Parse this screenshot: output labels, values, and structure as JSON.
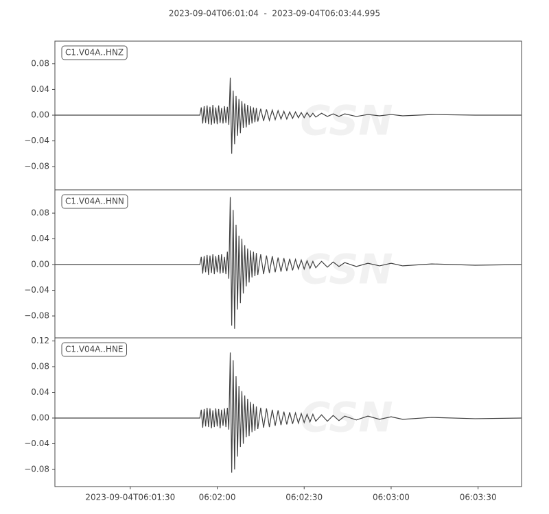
{
  "title": "2023-09-04T06:01:04  -  2023-09-04T06:03:44.995",
  "watermark": "CSN",
  "chart_data": [
    {
      "type": "line",
      "x": [
        0,
        25,
        50,
        50.5,
        51,
        51.5,
        52,
        52.5,
        53,
        53.5,
        54,
        54.5,
        55,
        55.5,
        56,
        56.5,
        57,
        57.5,
        58,
        58.5,
        59,
        59.5,
        60,
        60.5,
        61,
        61.5,
        62,
        62.5,
        63,
        63.5,
        64,
        64.5,
        65,
        65.5,
        66,
        66.5,
        67,
        67.5,
        68,
        68.5,
        69,
        69.5,
        70,
        71,
        72,
        73,
        74,
        75,
        76,
        77,
        78,
        79,
        80,
        81,
        82,
        83,
        84,
        85,
        86,
        87,
        88,
        89,
        90,
        92,
        94,
        96,
        98,
        100,
        104,
        108,
        112,
        116,
        120,
        130,
        145,
        160.995
      ],
      "series": [
        {
          "name": "C1.V04A..HNZ",
          "color": "#404040",
          "values": [
            0,
            0,
            0,
            0.012,
            -0.013,
            0.014,
            -0.012,
            0.015,
            -0.014,
            0.013,
            -0.015,
            0.016,
            -0.013,
            0.012,
            -0.014,
            0.015,
            -0.012,
            0.011,
            -0.013,
            0.014,
            -0.012,
            0.013,
            -0.015,
            0.058,
            -0.06,
            0.038,
            -0.045,
            0.03,
            -0.032,
            0.025,
            -0.028,
            0.022,
            -0.02,
            0.018,
            -0.019,
            0.016,
            -0.015,
            0.014,
            -0.013,
            0.012,
            -0.011,
            0.011,
            -0.01,
            0.01,
            -0.009,
            0.009,
            -0.008,
            0.008,
            -0.007,
            0.007,
            -0.006,
            0.006,
            -0.006,
            0.005,
            -0.005,
            0.005,
            -0.004,
            0.004,
            -0.004,
            0.004,
            -0.003,
            0.003,
            -0.003,
            0.003,
            -0.002,
            0.002,
            -0.002,
            0.002,
            -0.002,
            0.001,
            -0.001,
            0.001,
            -0.001,
            0.001,
            0,
            0
          ]
        }
      ],
      "xlim": [
        0,
        160.995
      ],
      "ylim": [
        -0.116,
        0.115
      ],
      "yticks": [
        0.08,
        0.04,
        {
          "value": 0,
          "label": "0.00"
        },
        {
          "value": -0.04,
          "label": "−0.04"
        },
        {
          "value": -0.08,
          "label": "−0.08"
        }
      ]
    },
    {
      "type": "line",
      "x": [
        0,
        25,
        50,
        50.5,
        51,
        51.5,
        52,
        52.5,
        53,
        53.5,
        54,
        54.5,
        55,
        55.5,
        56,
        56.5,
        57,
        57.5,
        58,
        58.5,
        59,
        59.5,
        60,
        60.5,
        61,
        61.5,
        62,
        62.5,
        63,
        63.5,
        64,
        64.5,
        65,
        65.5,
        66,
        66.5,
        67,
        67.5,
        68,
        68.5,
        69,
        69.5,
        70,
        71,
        72,
        73,
        74,
        75,
        76,
        77,
        78,
        79,
        80,
        81,
        82,
        83,
        84,
        85,
        86,
        87,
        88,
        89,
        90,
        92,
        94,
        96,
        98,
        100,
        104,
        108,
        112,
        116,
        120,
        130,
        145,
        160.995
      ],
      "series": [
        {
          "name": "C1.V04A..HNN",
          "color": "#404040",
          "values": [
            0,
            0,
            0,
            0.012,
            -0.014,
            0.013,
            -0.012,
            0.015,
            -0.016,
            0.014,
            -0.013,
            0.016,
            -0.015,
            0.013,
            -0.012,
            0.015,
            -0.014,
            0.016,
            -0.013,
            0.012,
            -0.015,
            0.02,
            -0.022,
            0.105,
            -0.095,
            0.085,
            -0.1,
            0.062,
            -0.07,
            0.045,
            -0.06,
            0.04,
            -0.045,
            0.03,
            -0.034,
            0.025,
            -0.028,
            0.022,
            -0.02,
            0.02,
            -0.018,
            0.018,
            -0.016,
            0.016,
            -0.015,
            0.014,
            -0.013,
            0.013,
            -0.012,
            0.011,
            -0.011,
            0.01,
            -0.01,
            0.009,
            -0.009,
            0.008,
            -0.007,
            0.007,
            -0.007,
            0.006,
            -0.006,
            0.005,
            -0.005,
            0.005,
            -0.004,
            0.004,
            -0.003,
            0.003,
            -0.003,
            0.002,
            -0.002,
            0.002,
            -0.002,
            0.001,
            -0.001,
            0
          ]
        }
      ],
      "xlim": [
        0,
        160.995
      ],
      "ylim": [
        -0.1141,
        0.1163
      ],
      "yticks": [
        0.08,
        0.04,
        {
          "value": 0,
          "label": "0.00"
        },
        {
          "value": -0.04,
          "label": "−0.04"
        },
        {
          "value": -0.08,
          "label": "−0.08"
        }
      ]
    },
    {
      "type": "line",
      "x": [
        0,
        25,
        50,
        50.5,
        51,
        51.5,
        52,
        52.5,
        53,
        53.5,
        54,
        54.5,
        55,
        55.5,
        56,
        56.5,
        57,
        57.5,
        58,
        58.5,
        59,
        59.5,
        60,
        60.5,
        61,
        61.5,
        62,
        62.5,
        63,
        63.5,
        64,
        64.5,
        65,
        65.5,
        66,
        66.5,
        67,
        67.5,
        68,
        68.5,
        69,
        69.5,
        70,
        71,
        72,
        73,
        74,
        75,
        76,
        77,
        78,
        79,
        80,
        81,
        82,
        83,
        84,
        85,
        86,
        87,
        88,
        89,
        90,
        92,
        94,
        96,
        98,
        100,
        104,
        108,
        112,
        116,
        120,
        130,
        145,
        160.995
      ],
      "series": [
        {
          "name": "C1.V04A..HNE",
          "color": "#404040",
          "values": [
            0,
            0,
            0,
            0.013,
            -0.015,
            0.014,
            -0.013,
            0.016,
            -0.014,
            0.015,
            -0.016,
            0.012,
            -0.014,
            0.015,
            -0.013,
            0.014,
            -0.016,
            0.013,
            -0.012,
            0.015,
            -0.014,
            0.016,
            -0.018,
            0.102,
            -0.085,
            0.09,
            -0.08,
            0.065,
            -0.06,
            0.05,
            -0.045,
            0.042,
            -0.04,
            0.035,
            -0.03,
            0.03,
            -0.028,
            0.025,
            -0.022,
            0.022,
            -0.02,
            0.018,
            -0.017,
            0.016,
            -0.015,
            0.015,
            -0.014,
            0.013,
            -0.012,
            0.012,
            -0.011,
            0.01,
            -0.01,
            0.009,
            -0.009,
            0.008,
            -0.008,
            0.007,
            -0.007,
            0.006,
            -0.006,
            0.006,
            -0.005,
            0.005,
            -0.005,
            0.004,
            -0.004,
            0.003,
            -0.003,
            0.003,
            -0.002,
            0.002,
            -0.002,
            0.001,
            -0.001,
            0
          ]
        }
      ],
      "xlim": [
        0,
        160.995
      ],
      "ylim": [
        -0.1067,
        0.1248
      ],
      "yticks": [
        0.12,
        0.08,
        0.04,
        {
          "value": 0,
          "label": "0.00"
        },
        {
          "value": -0.04,
          "label": "−0.04"
        },
        {
          "value": -0.08,
          "label": "−0.08"
        }
      ],
      "xticks": [
        {
          "value": 26,
          "label": "2023-09-04T06:01:30"
        },
        {
          "value": 56,
          "label": "06:02:00"
        },
        {
          "value": 86,
          "label": "06:02:30"
        },
        {
          "value": 116,
          "label": "06:03:00"
        },
        {
          "value": 146,
          "label": "06:03:30"
        }
      ]
    }
  ]
}
